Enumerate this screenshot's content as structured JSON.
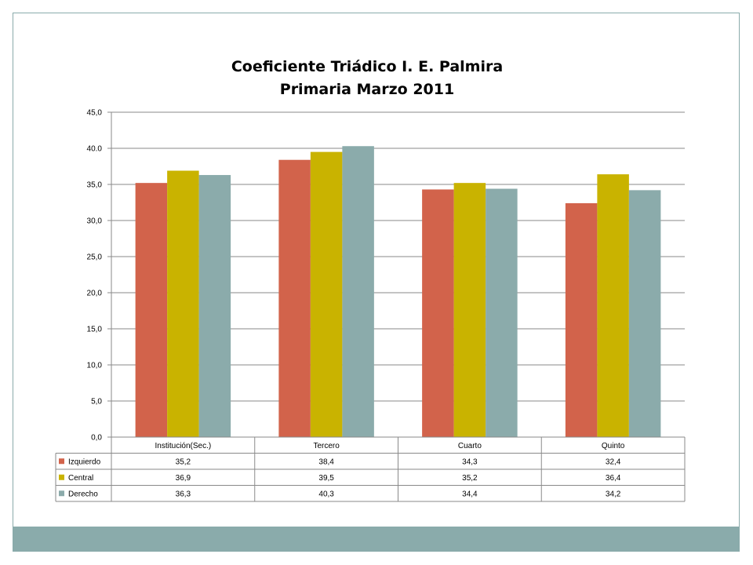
{
  "chart_data": {
    "type": "bar",
    "title": "Coeficiente Triádico I. E. Palmira",
    "subtitle": "Primaria Marzo 2011",
    "categories": [
      "Institución(Sec.)",
      "Tercero",
      "Cuarto",
      "Quinto"
    ],
    "series": [
      {
        "name": "Izquierdo",
        "color": "#d2634b",
        "values": [
          35.2,
          38.4,
          34.3,
          32.4
        ],
        "labels": [
          "35,2",
          "38,4",
          "34,3",
          "32,4"
        ]
      },
      {
        "name": "Central",
        "color": "#c9b300",
        "values": [
          36.9,
          39.5,
          35.2,
          36.4
        ],
        "labels": [
          "36,9",
          "39,5",
          "35,2",
          "36,4"
        ]
      },
      {
        "name": "Derecho",
        "color": "#8babab",
        "values": [
          36.3,
          40.3,
          34.4,
          34.2
        ],
        "labels": [
          "36,3",
          "40,3",
          "34,4",
          "34,2"
        ]
      }
    ],
    "ylim": [
      0,
      45
    ],
    "yticks": [
      0,
      5,
      10,
      15,
      20,
      25,
      30,
      35,
      40,
      45
    ],
    "ytick_labels": [
      "0,0",
      "5,0",
      "10,0",
      "15,0",
      "20,0",
      "25,0",
      "30,0",
      "35,0",
      "40.0",
      "45,0"
    ],
    "grid": true,
    "legend": "data-table",
    "xlabel": "",
    "ylabel": ""
  }
}
